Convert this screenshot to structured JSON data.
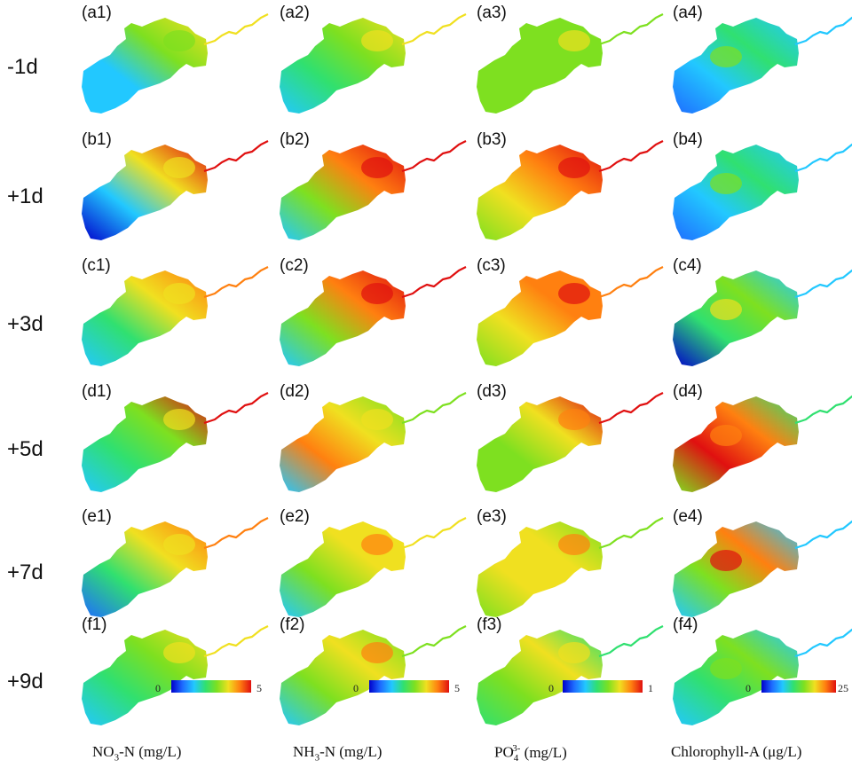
{
  "row_labels": [
    "-1d",
    "+1d",
    "+3d",
    "+5d",
    "+7d",
    "+9d"
  ],
  "panel_labels": [
    [
      "(a1)",
      "(a2)",
      "(a3)",
      "(a4)"
    ],
    [
      "(b1)",
      "(b2)",
      "(b3)",
      "(b4)"
    ],
    [
      "(c1)",
      "(c2)",
      "(c3)",
      "(c4)"
    ],
    [
      "(d1)",
      "(d2)",
      "(d3)",
      "(d4)"
    ],
    [
      "(e1)",
      "(e2)",
      "(e3)",
      "(e4)"
    ],
    [
      "(f1)",
      "(f2)",
      "(f3)",
      "(f4)"
    ]
  ],
  "colorbars": [
    {
      "min": "0",
      "max": "5"
    },
    {
      "min": "0",
      "max": "5"
    },
    {
      "min": "0",
      "max": "1"
    },
    {
      "min": "0",
      "max": "25"
    }
  ],
  "column_labels": [
    {
      "text": "NO",
      "sub": "3",
      "rest": "-N (mg/L)"
    },
    {
      "text": "NH",
      "sub": "3",
      "rest": "-N (mg/L)"
    },
    {
      "text": "PO",
      "sub": "4",
      "sup": "3-",
      "rest": " (mg/L)"
    },
    {
      "text": "Chlorophyll-A (μg/L)"
    }
  ],
  "colors": {
    "scale": [
      "#0000cc",
      "#1e6cff",
      "#22c8ff",
      "#30e070",
      "#7ee020",
      "#f0e020",
      "#ff8010",
      "#e01010"
    ]
  },
  "panel_levels": [
    [
      [
        0.25,
        0.35,
        0.55,
        0.7
      ],
      [
        0.3,
        0.45,
        0.6,
        0.65
      ],
      [
        0.5,
        0.55,
        0.6,
        0.55
      ],
      [
        0.2,
        0.3,
        0.45,
        0.3
      ]
    ],
    [
      [
        0.05,
        0.35,
        0.7,
        0.95
      ],
      [
        0.25,
        0.55,
        0.85,
        1.0
      ],
      [
        0.5,
        0.65,
        0.85,
        0.95
      ],
      [
        0.2,
        0.35,
        0.45,
        0.35
      ]
    ],
    [
      [
        0.25,
        0.45,
        0.7,
        0.85
      ],
      [
        0.3,
        0.6,
        0.85,
        1.0
      ],
      [
        0.55,
        0.7,
        0.85,
        0.85
      ],
      [
        0.05,
        0.45,
        0.6,
        0.3
      ]
    ],
    [
      [
        0.25,
        0.4,
        0.6,
        0.95
      ],
      [
        0.35,
        0.8,
        0.7,
        0.5
      ],
      [
        0.5,
        0.6,
        0.75,
        0.95
      ],
      [
        0.6,
        0.95,
        0.8,
        0.4
      ]
    ],
    [
      [
        0.2,
        0.45,
        0.65,
        0.8
      ],
      [
        0.25,
        0.55,
        0.75,
        0.65
      ],
      [
        0.5,
        0.7,
        0.75,
        0.55
      ],
      [
        0.25,
        0.55,
        0.85,
        0.25
      ]
    ],
    [
      [
        0.25,
        0.4,
        0.6,
        0.7
      ],
      [
        0.3,
        0.55,
        0.75,
        0.5
      ],
      [
        0.4,
        0.5,
        0.65,
        0.45
      ],
      [
        0.3,
        0.4,
        0.5,
        0.25
      ]
    ]
  ]
}
